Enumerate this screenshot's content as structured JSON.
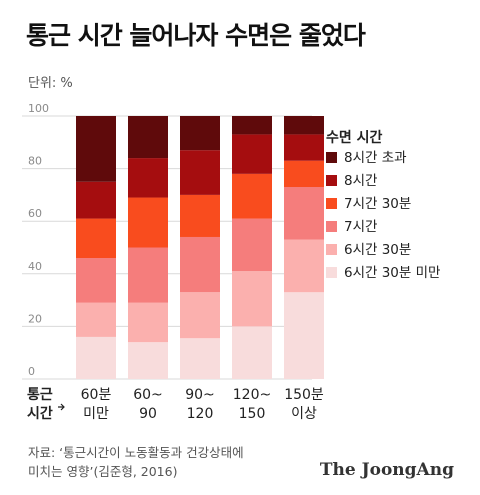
{
  "title": "통근 시간 늘어나자 수면은 줄었다",
  "unit_label": "단위: %",
  "source": {
    "line1": "자료: ‘통근시간이 노동활동과 건강상태에",
    "line2": "미치는 영향’(김준형, 2016)"
  },
  "brand": "The JoongAng",
  "chart_data": {
    "type": "bar",
    "stacked": true,
    "xlabel": [
      "통근",
      "시간"
    ],
    "categories": [
      [
        "60분",
        "미만"
      ],
      [
        "60~",
        "90"
      ],
      [
        "90~",
        "120"
      ],
      [
        "120~",
        "150"
      ],
      [
        "150분",
        "이상"
      ]
    ],
    "ylim": [
      0,
      100
    ],
    "yticks": [
      0,
      20,
      40,
      60,
      80,
      100
    ],
    "legend_title": "수면 시간",
    "legend_position": "right",
    "grid": true,
    "series": [
      {
        "name": "6시간 30분 미만",
        "color": "#f8dcdc",
        "values": [
          16,
          14,
          15.5,
          20,
          33
        ]
      },
      {
        "name": "6시간 30분",
        "color": "#fbb0ae",
        "values": [
          13,
          15,
          17.5,
          21,
          20
        ]
      },
      {
        "name": "7시간",
        "color": "#f57d7c",
        "values": [
          17,
          21,
          21,
          20,
          20
        ]
      },
      {
        "name": "7시간 30분",
        "color": "#f94c1e",
        "values": [
          15,
          19,
          16,
          17,
          10
        ]
      },
      {
        "name": "8시간",
        "color": "#a50d0f",
        "values": [
          14,
          15,
          17,
          15,
          10
        ]
      },
      {
        "name": "8시간 초과",
        "color": "#5f0a0b",
        "values": [
          25,
          16,
          13,
          7,
          7
        ]
      }
    ]
  }
}
